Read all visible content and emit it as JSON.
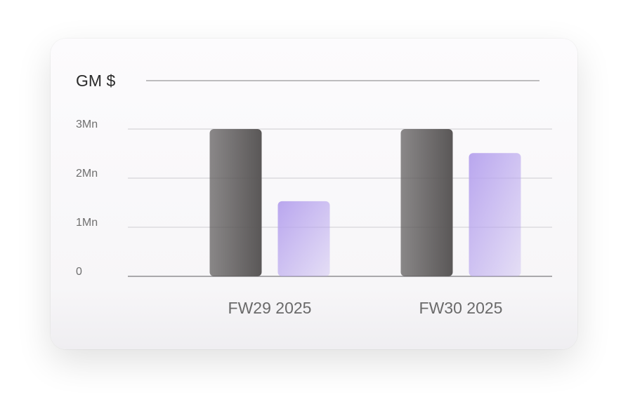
{
  "chart_data": {
    "type": "bar",
    "title": "GM $",
    "categories": [
      "FW29 2025",
      "FW30 2025"
    ],
    "series": [
      {
        "color": "#5a5757",
        "values": [
          3000000,
          3000000
        ]
      },
      {
        "color": "#b9a6ee",
        "values": [
          1530000,
          2510000
        ]
      }
    ],
    "ylim": [
      0,
      3000000
    ],
    "yticks": [
      0,
      {
        "value": 1000000,
        "label": "1Mn"
      },
      {
        "value": 2000000,
        "label": "2Mn"
      },
      {
        "value": 3000000,
        "label": "3Mn"
      }
    ],
    "grid": true
  }
}
